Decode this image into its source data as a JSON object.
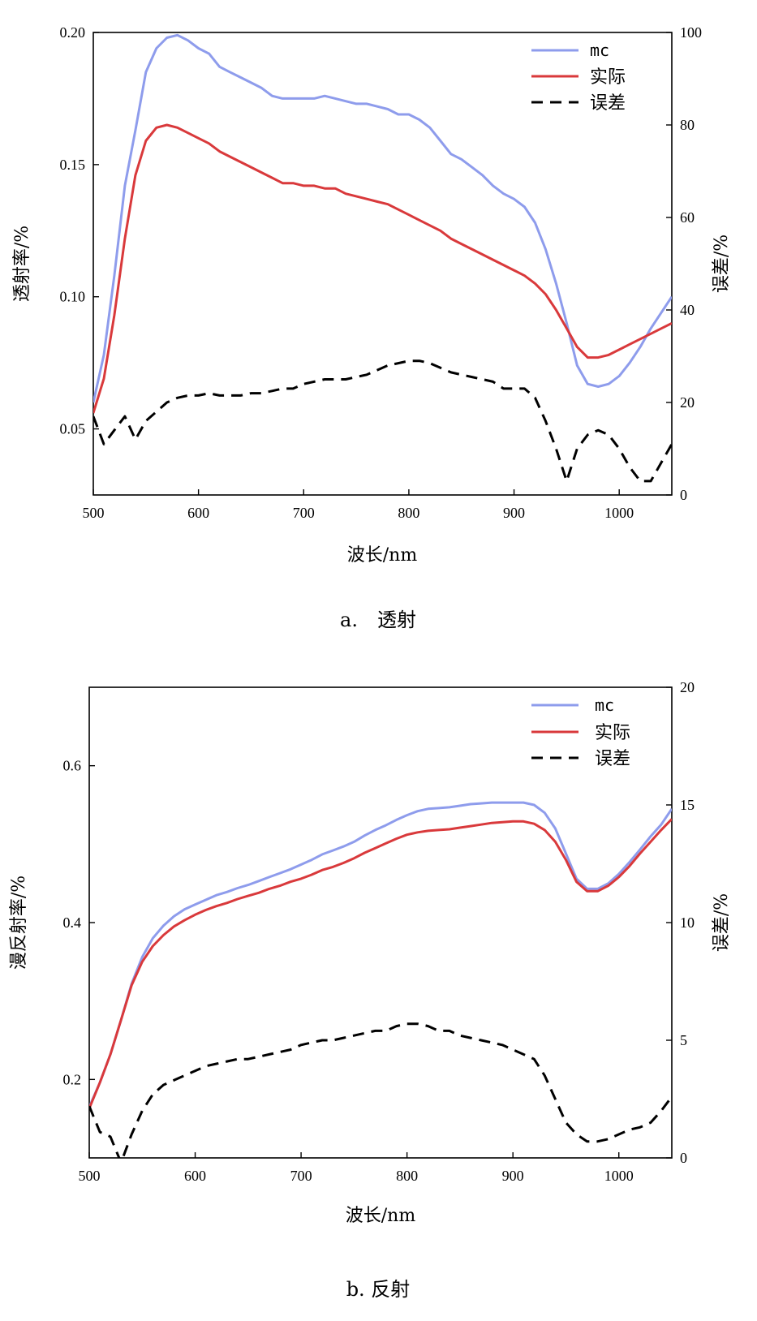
{
  "chart_data": [
    {
      "type": "line",
      "caption": "a.　透射",
      "xlabel": "波长/nm",
      "ylabel": "透射率/%",
      "y2label": "误差/%",
      "xlim": [
        500,
        1050
      ],
      "ylim": [
        0.025,
        0.2
      ],
      "y2lim": [
        0,
        100
      ],
      "xticks": [
        "500",
        "600",
        "700",
        "800",
        "900",
        "1000"
      ],
      "yticks": [
        "0.05",
        "0.10",
        "0.15",
        "0.20"
      ],
      "y2ticks": [
        "0",
        "20",
        "40",
        "60",
        "80",
        "100"
      ],
      "legend_position": "top-right",
      "series": [
        {
          "name": "mc",
          "axis": "left",
          "color": "#8e9cec",
          "style": "solid",
          "x": [
            500,
            510,
            520,
            530,
            540,
            550,
            560,
            570,
            580,
            590,
            600,
            610,
            620,
            630,
            640,
            650,
            660,
            670,
            680,
            690,
            700,
            710,
            720,
            730,
            740,
            750,
            760,
            770,
            780,
            790,
            800,
            810,
            820,
            830,
            840,
            850,
            860,
            870,
            880,
            890,
            900,
            910,
            920,
            930,
            940,
            950,
            960,
            970,
            980,
            990,
            1000,
            1010,
            1020,
            1030,
            1040,
            1050
          ],
          "values": [
            0.06,
            0.078,
            0.108,
            0.142,
            0.163,
            0.185,
            0.194,
            0.198,
            0.199,
            0.197,
            0.194,
            0.192,
            0.187,
            0.185,
            0.183,
            0.181,
            0.179,
            0.176,
            0.175,
            0.175,
            0.175,
            0.175,
            0.176,
            0.175,
            0.174,
            0.173,
            0.173,
            0.172,
            0.171,
            0.169,
            0.169,
            0.167,
            0.164,
            0.159,
            0.154,
            0.152,
            0.149,
            0.146,
            0.142,
            0.139,
            0.137,
            0.134,
            0.128,
            0.118,
            0.105,
            0.09,
            0.074,
            0.067,
            0.066,
            0.067,
            0.07,
            0.075,
            0.081,
            0.088,
            0.094,
            0.1
          ]
        },
        {
          "name": "实际",
          "axis": "left",
          "color": "#d9393b",
          "style": "solid",
          "x": [
            500,
            510,
            520,
            530,
            540,
            550,
            560,
            570,
            580,
            590,
            600,
            610,
            620,
            630,
            640,
            650,
            660,
            670,
            680,
            690,
            700,
            710,
            720,
            730,
            740,
            750,
            760,
            770,
            780,
            790,
            800,
            810,
            820,
            830,
            840,
            850,
            860,
            870,
            880,
            890,
            900,
            910,
            920,
            930,
            940,
            950,
            960,
            970,
            980,
            990,
            1000,
            1010,
            1020,
            1030,
            1040,
            1050
          ],
          "values": [
            0.056,
            0.069,
            0.093,
            0.122,
            0.146,
            0.159,
            0.164,
            0.165,
            0.164,
            0.162,
            0.16,
            0.158,
            0.155,
            0.153,
            0.151,
            0.149,
            0.147,
            0.145,
            0.143,
            0.143,
            0.142,
            0.142,
            0.141,
            0.141,
            0.139,
            0.138,
            0.137,
            0.136,
            0.135,
            0.133,
            0.131,
            0.129,
            0.127,
            0.125,
            0.122,
            0.12,
            0.118,
            0.116,
            0.114,
            0.112,
            0.11,
            0.108,
            0.105,
            0.101,
            0.095,
            0.088,
            0.081,
            0.077,
            0.077,
            0.078,
            0.08,
            0.082,
            0.084,
            0.086,
            0.088,
            0.09
          ]
        },
        {
          "name": "误差",
          "axis": "right",
          "color": "#000000",
          "style": "dashed",
          "x": [
            500,
            510,
            520,
            530,
            540,
            550,
            560,
            570,
            580,
            590,
            600,
            610,
            620,
            630,
            640,
            650,
            660,
            670,
            680,
            690,
            700,
            710,
            720,
            730,
            740,
            750,
            760,
            770,
            780,
            790,
            800,
            810,
            820,
            830,
            840,
            850,
            860,
            870,
            880,
            890,
            900,
            910,
            920,
            930,
            940,
            950,
            960,
            970,
            980,
            990,
            1000,
            1010,
            1020,
            1030,
            1040,
            1050
          ],
          "values": [
            17,
            11,
            14,
            17,
            12,
            16,
            18,
            20,
            21,
            21.5,
            21.5,
            22,
            21.5,
            21.5,
            21.5,
            22,
            22,
            22.5,
            23,
            23,
            24,
            24.5,
            25,
            25,
            25,
            25.5,
            26,
            27,
            28,
            28.5,
            29,
            29,
            28.5,
            27.5,
            26.5,
            26,
            25.5,
            25,
            24.5,
            23,
            23,
            23,
            21,
            16,
            10,
            3,
            10,
            13,
            14,
            13,
            10,
            6,
            3,
            3,
            7,
            11
          ]
        }
      ]
    },
    {
      "type": "line",
      "caption": "b. 反射",
      "xlabel": "波长/nm",
      "ylabel": "漫反射率/%",
      "y2label": "误差/%",
      "xlim": [
        500,
        1050
      ],
      "ylim": [
        0.1,
        0.7
      ],
      "y2lim": [
        0,
        20
      ],
      "xticks": [
        "500",
        "600",
        "700",
        "800",
        "900",
        "1000"
      ],
      "yticks": [
        "0.2",
        "0.4",
        "0.6"
      ],
      "y2ticks": [
        "0",
        "5",
        "10",
        "15",
        "20"
      ],
      "legend_position": "top-right",
      "series": [
        {
          "name": "mc",
          "axis": "left",
          "color": "#8e9cec",
          "style": "solid",
          "x": [
            500,
            510,
            520,
            530,
            540,
            550,
            560,
            570,
            580,
            590,
            600,
            610,
            620,
            630,
            640,
            650,
            660,
            670,
            680,
            690,
            700,
            710,
            720,
            730,
            740,
            750,
            760,
            770,
            780,
            790,
            800,
            810,
            820,
            830,
            840,
            850,
            860,
            870,
            880,
            890,
            900,
            910,
            920,
            930,
            940,
            950,
            960,
            970,
            980,
            990,
            1000,
            1010,
            1020,
            1030,
            1040,
            1050
          ],
          "values": [
            0.165,
            0.196,
            0.232,
            0.276,
            0.322,
            0.356,
            0.38,
            0.396,
            0.408,
            0.417,
            0.423,
            0.429,
            0.435,
            0.439,
            0.444,
            0.448,
            0.453,
            0.458,
            0.463,
            0.468,
            0.474,
            0.48,
            0.487,
            0.492,
            0.497,
            0.503,
            0.511,
            0.518,
            0.524,
            0.531,
            0.537,
            0.542,
            0.545,
            0.546,
            0.547,
            0.549,
            0.551,
            0.552,
            0.553,
            0.553,
            0.553,
            0.553,
            0.55,
            0.54,
            0.52,
            0.488,
            0.456,
            0.443,
            0.443,
            0.45,
            0.462,
            0.477,
            0.493,
            0.51,
            0.525,
            0.545
          ]
        },
        {
          "name": "实际",
          "axis": "left",
          "color": "#d9393b",
          "style": "solid",
          "x": [
            500,
            510,
            520,
            530,
            540,
            550,
            560,
            570,
            580,
            590,
            600,
            610,
            620,
            630,
            640,
            650,
            660,
            670,
            680,
            690,
            700,
            710,
            720,
            730,
            740,
            750,
            760,
            770,
            780,
            790,
            800,
            810,
            820,
            830,
            840,
            850,
            860,
            870,
            880,
            890,
            900,
            910,
            920,
            930,
            940,
            950,
            960,
            970,
            980,
            990,
            1000,
            1010,
            1020,
            1030,
            1040,
            1050
          ],
          "values": [
            0.163,
            0.196,
            0.232,
            0.276,
            0.32,
            0.35,
            0.37,
            0.384,
            0.395,
            0.403,
            0.41,
            0.416,
            0.421,
            0.425,
            0.43,
            0.434,
            0.438,
            0.443,
            0.447,
            0.452,
            0.456,
            0.461,
            0.467,
            0.471,
            0.476,
            0.482,
            0.489,
            0.495,
            0.501,
            0.507,
            0.512,
            0.515,
            0.517,
            0.518,
            0.519,
            0.521,
            0.523,
            0.525,
            0.527,
            0.528,
            0.529,
            0.529,
            0.526,
            0.518,
            0.503,
            0.48,
            0.452,
            0.44,
            0.44,
            0.447,
            0.458,
            0.472,
            0.488,
            0.503,
            0.518,
            0.532
          ]
        },
        {
          "name": "误差",
          "axis": "right",
          "color": "#000000",
          "style": "dashed",
          "x": [
            500,
            510,
            520,
            530,
            540,
            550,
            560,
            570,
            580,
            590,
            600,
            610,
            620,
            630,
            640,
            650,
            660,
            670,
            680,
            690,
            700,
            710,
            720,
            730,
            740,
            750,
            760,
            770,
            780,
            790,
            800,
            810,
            820,
            830,
            840,
            850,
            860,
            870,
            880,
            890,
            900,
            910,
            920,
            930,
            940,
            950,
            960,
            970,
            980,
            990,
            1000,
            1010,
            1020,
            1030,
            1040,
            1050
          ],
          "values": [
            2.2,
            1.1,
            0.9,
            -0.2,
            1.0,
            2.0,
            2.7,
            3.1,
            3.3,
            3.5,
            3.7,
            3.9,
            4.0,
            4.1,
            4.2,
            4.2,
            4.3,
            4.4,
            4.5,
            4.6,
            4.8,
            4.9,
            5.0,
            5.0,
            5.1,
            5.2,
            5.3,
            5.4,
            5.4,
            5.6,
            5.7,
            5.7,
            5.6,
            5.4,
            5.4,
            5.2,
            5.1,
            5.0,
            4.9,
            4.8,
            4.6,
            4.4,
            4.2,
            3.5,
            2.5,
            1.5,
            1.0,
            0.7,
            0.7,
            0.8,
            1.0,
            1.2,
            1.3,
            1.5,
            2.0,
            2.6
          ]
        }
      ]
    }
  ]
}
